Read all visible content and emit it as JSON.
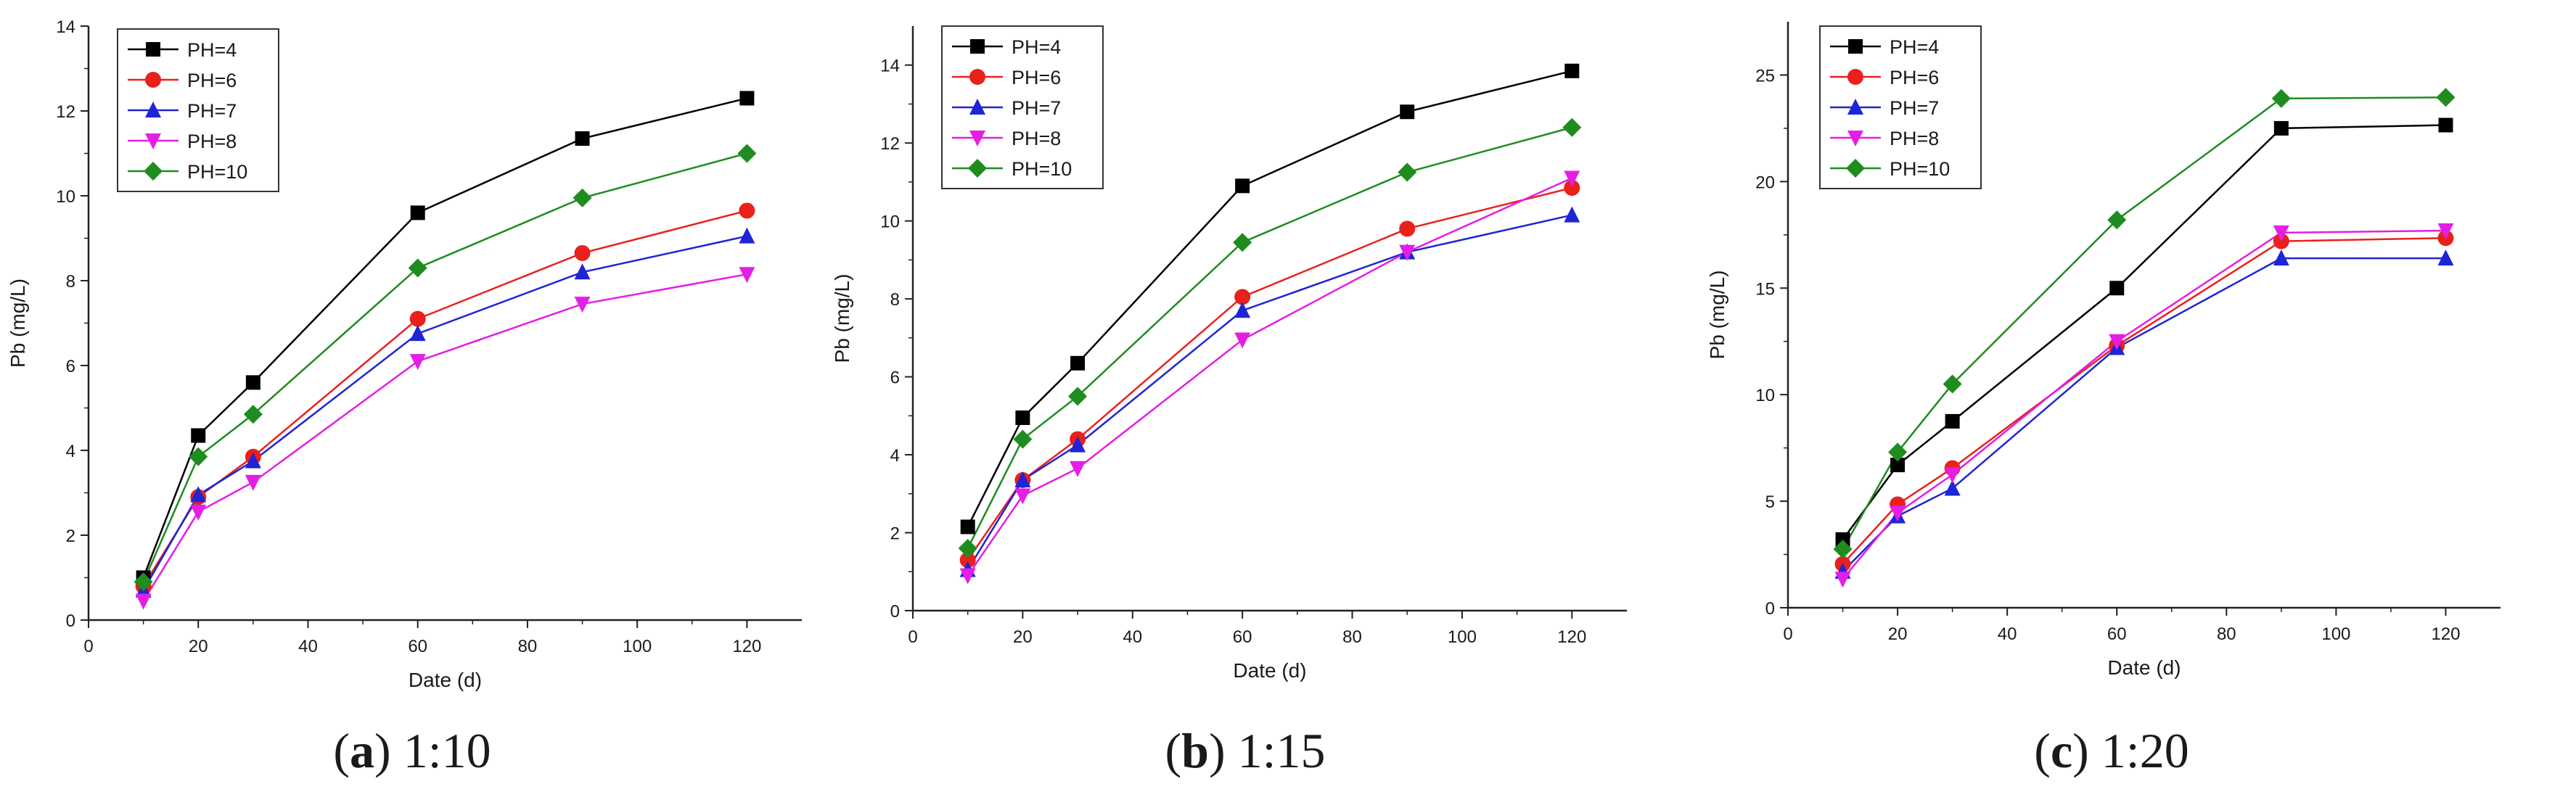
{
  "chart_data": [
    {
      "type": "line",
      "caption_letter": "a",
      "caption_text": " 1:10",
      "xlabel": "Date (d)",
      "ylabel": "Pb (mg/L)",
      "xlim": [
        0,
        130
      ],
      "ylim": [
        0,
        14
      ],
      "xticks": [
        0,
        20,
        40,
        60,
        80,
        100,
        120
      ],
      "yticks": [
        0,
        2,
        4,
        6,
        8,
        10,
        12,
        14
      ],
      "legend_position": "top-left",
      "x": [
        10,
        20,
        30,
        60,
        90,
        120
      ],
      "series": [
        {
          "name": "PH=4",
          "color": "#000000",
          "marker": "square",
          "values": [
            1.0,
            4.35,
            5.6,
            9.6,
            11.35,
            12.3
          ]
        },
        {
          "name": "PH=6",
          "color": "#e8211d",
          "marker": "circle",
          "values": [
            0.8,
            2.9,
            3.85,
            7.1,
            8.65,
            9.65
          ]
        },
        {
          "name": "PH=7",
          "color": "#1f24d6",
          "marker": "triangle-up",
          "values": [
            0.7,
            2.95,
            3.75,
            6.75,
            8.2,
            9.05
          ]
        },
        {
          "name": "PH=8",
          "color": "#e51ee5",
          "marker": "triangle-down",
          "values": [
            0.45,
            2.55,
            3.25,
            6.1,
            7.45,
            8.15
          ]
        },
        {
          "name": "PH=10",
          "color": "#1e8c1e",
          "marker": "diamond",
          "values": [
            0.9,
            3.85,
            4.85,
            8.3,
            9.95,
            11.0
          ]
        }
      ]
    },
    {
      "type": "line",
      "caption_letter": "b",
      "caption_text": " 1:15",
      "xlabel": "Date (d)",
      "ylabel": "Pb (mg/L)",
      "xlim": [
        0,
        130
      ],
      "ylim": [
        0,
        15
      ],
      "xticks": [
        0,
        20,
        40,
        60,
        80,
        100,
        120
      ],
      "yticks": [
        0,
        2,
        4,
        6,
        8,
        10,
        12,
        14
      ],
      "legend_position": "top-left",
      "x": [
        10,
        20,
        30,
        60,
        90,
        120
      ],
      "series": [
        {
          "name": "PH=4",
          "color": "#000000",
          "marker": "square",
          "values": [
            2.15,
            4.95,
            6.35,
            10.9,
            12.8,
            13.85
          ]
        },
        {
          "name": "PH=6",
          "color": "#e8211d",
          "marker": "circle",
          "values": [
            1.3,
            3.35,
            4.4,
            8.05,
            9.8,
            10.85
          ]
        },
        {
          "name": "PH=7",
          "color": "#1f24d6",
          "marker": "triangle-up",
          "values": [
            1.05,
            3.35,
            4.25,
            7.7,
            9.2,
            10.15
          ]
        },
        {
          "name": "PH=8",
          "color": "#e51ee5",
          "marker": "triangle-down",
          "values": [
            0.9,
            2.95,
            3.65,
            6.95,
            9.2,
            11.1
          ]
        },
        {
          "name": "PH=10",
          "color": "#1e8c1e",
          "marker": "diamond",
          "values": [
            1.6,
            4.4,
            5.5,
            9.45,
            11.25,
            12.4
          ]
        }
      ]
    },
    {
      "type": "line",
      "caption_letter": "c",
      "caption_text": " 1:20",
      "xlabel": "Date (d)",
      "ylabel": "Pb (mg/L)",
      "xlim": [
        0,
        130
      ],
      "ylim": [
        0,
        27.5
      ],
      "xticks": [
        0,
        20,
        40,
        60,
        80,
        100,
        120
      ],
      "yticks": [
        0,
        5,
        10,
        15,
        20,
        25
      ],
      "legend_position": "top-left",
      "x": [
        10,
        20,
        30,
        60,
        90,
        120
      ],
      "series": [
        {
          "name": "PH=4",
          "color": "#000000",
          "marker": "square",
          "values": [
            3.2,
            6.7,
            8.75,
            15.0,
            22.5,
            22.65
          ]
        },
        {
          "name": "PH=6",
          "color": "#e8211d",
          "marker": "circle",
          "values": [
            2.05,
            4.85,
            6.55,
            12.3,
            17.2,
            17.35
          ]
        },
        {
          "name": "PH=7",
          "color": "#1f24d6",
          "marker": "triangle-up",
          "values": [
            1.7,
            4.3,
            5.6,
            12.2,
            16.4,
            16.4
          ]
        },
        {
          "name": "PH=8",
          "color": "#e51ee5",
          "marker": "triangle-down",
          "values": [
            1.35,
            4.45,
            6.25,
            12.5,
            17.6,
            17.7
          ]
        },
        {
          "name": "PH=10",
          "color": "#1e8c1e",
          "marker": "diamond",
          "values": [
            2.75,
            7.3,
            10.5,
            18.2,
            23.9,
            23.95
          ]
        }
      ]
    }
  ]
}
